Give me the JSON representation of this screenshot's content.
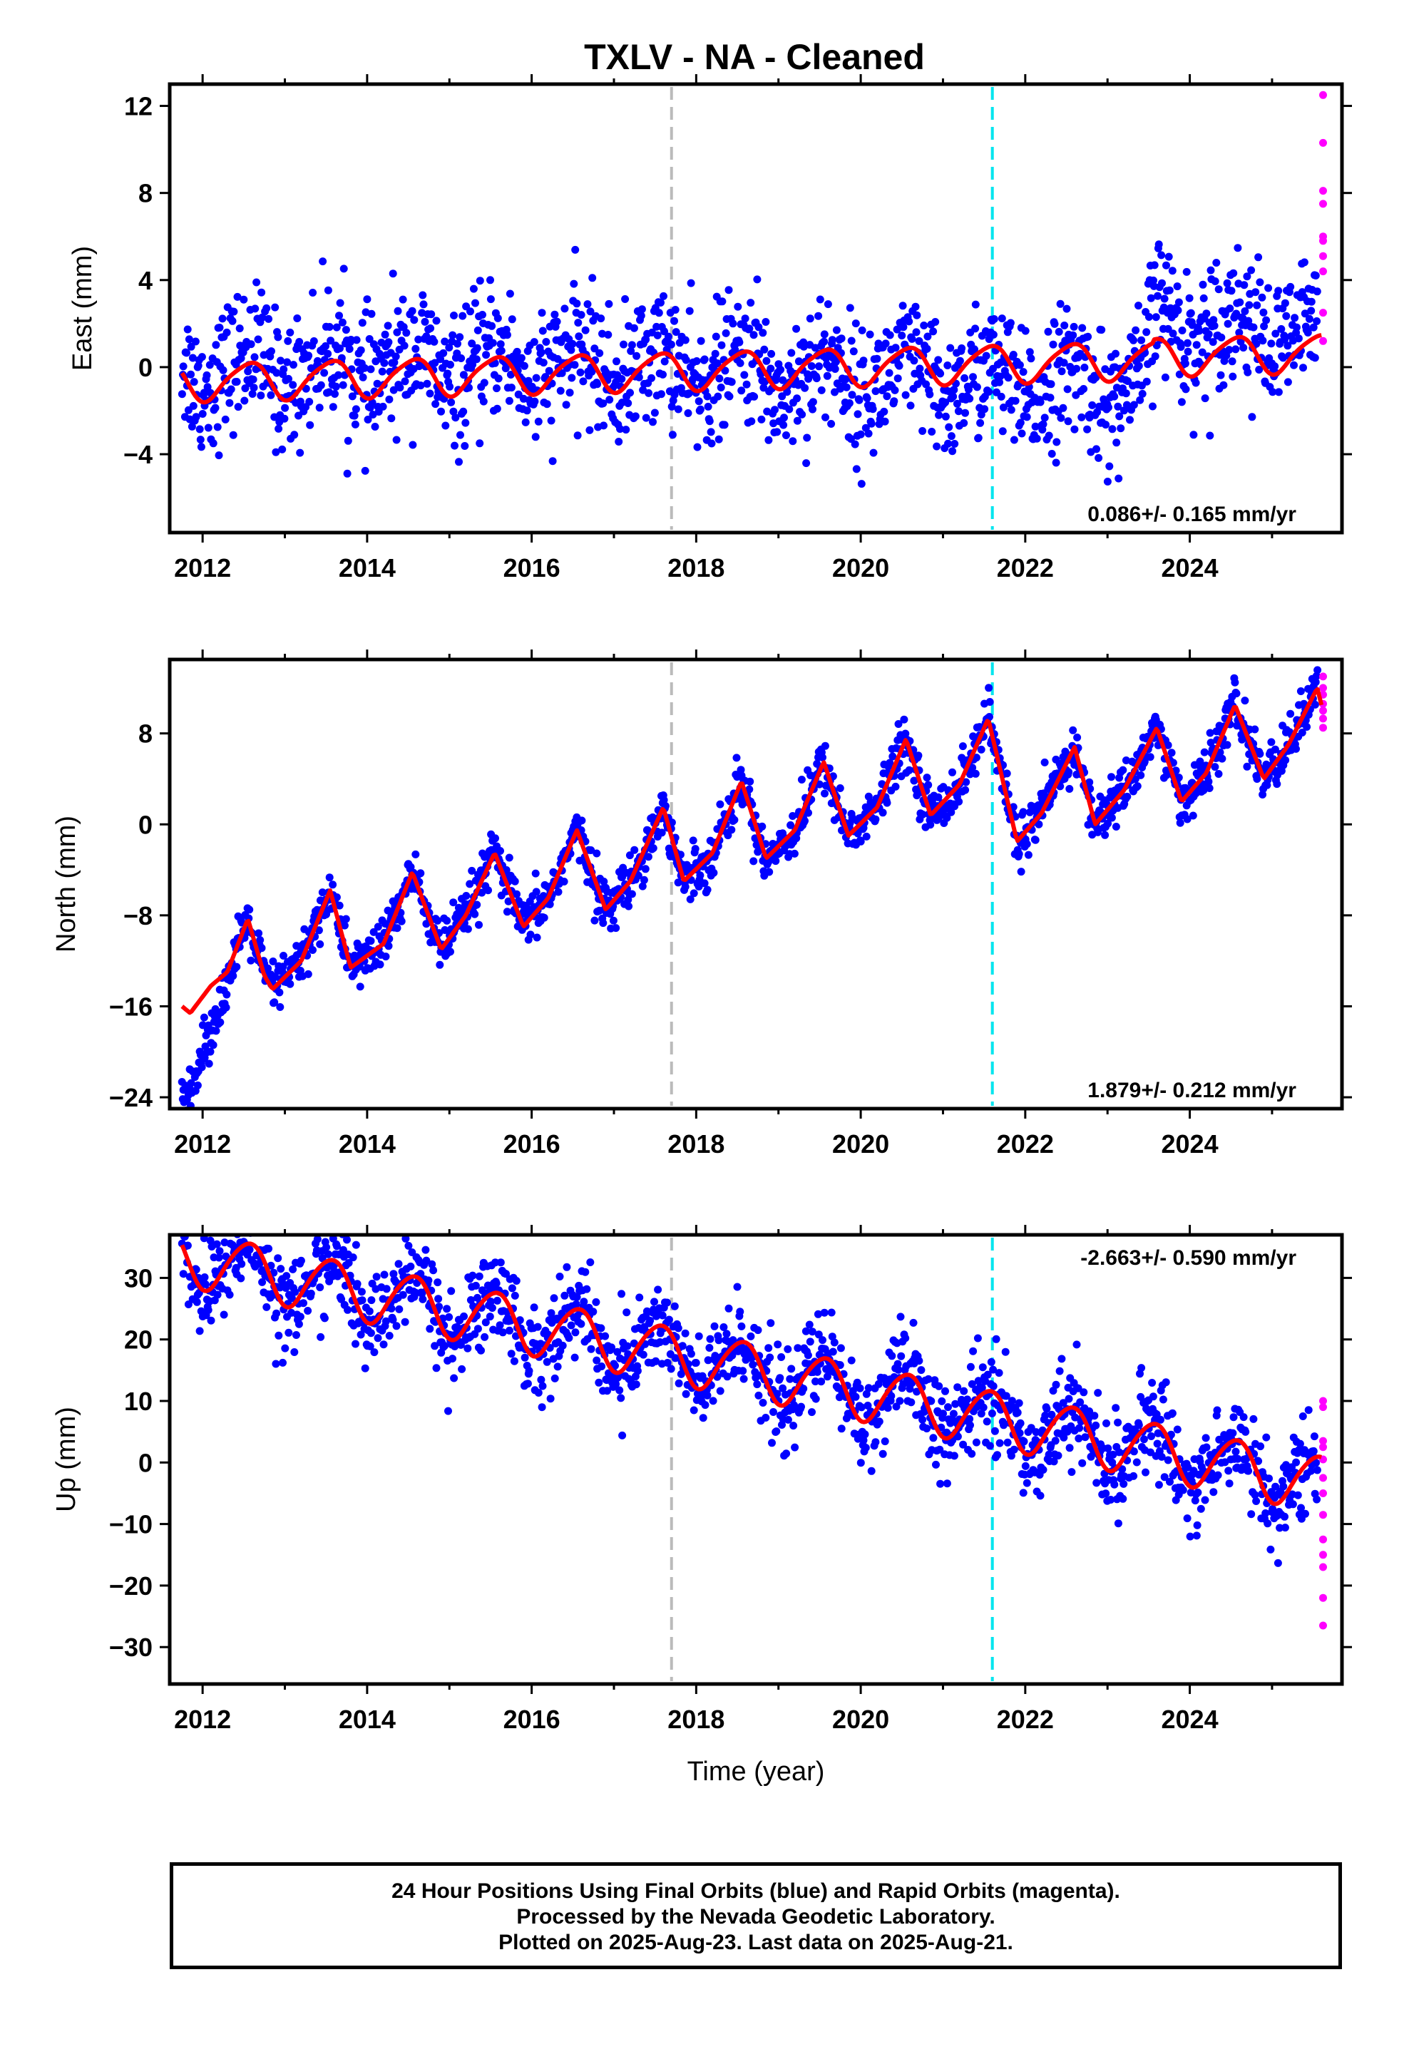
{
  "chart_title": "TXLV  - NA - Cleaned",
  "chart_data": [
    {
      "type": "scatter",
      "ylabel": "East (mm)",
      "xlabel": "",
      "xlim": [
        2011.6,
        2025.85
      ],
      "ylim": [
        -7.6,
        13.0
      ],
      "yticks": [
        -4,
        0,
        4,
        8,
        12
      ],
      "xticks": [
        2012,
        2014,
        2016,
        2018,
        2020,
        2022,
        2024
      ],
      "rate_text": "0.086+/- 0.165 mm/yr",
      "rate_position": "bottom-right",
      "equipment_change_lines": [
        {
          "x": 2017.7,
          "color": "#bbbbbb"
        },
        {
          "x": 2021.6,
          "color": "#00e5ee"
        }
      ],
      "model": {
        "rate_mm_per_yr": 0.086,
        "annual_amplitude": 0.85,
        "semiannual_amplitude": 0.15,
        "segments": [
          [
            2011.75,
            2023.55,
            -0.1
          ],
          [
            2023.55,
            2025.6,
            0.05
          ]
        ]
      },
      "point_trends": [
        [
          2011.75,
          0.6
        ],
        [
          2017.0,
          0.3
        ],
        [
          2021.5,
          -0.9
        ],
        [
          2023.4,
          -1.2
        ],
        [
          2023.6,
          1.8
        ],
        [
          2025.4,
          0.8
        ]
      ],
      "scatter_sigma": 1.5,
      "rapid_orbit_points": [
        12.5,
        10.3,
        8.1,
        7.5,
        6.0,
        5.8,
        5.1,
        4.4,
        2.5,
        1.2
      ]
    },
    {
      "type": "scatter",
      "ylabel": "North (mm)",
      "xlabel": "",
      "xlim": [
        2011.6,
        2025.85
      ],
      "ylim": [
        -25.0,
        14.5
      ],
      "yticks": [
        -24,
        -16,
        -8,
        0,
        8
      ],
      "xticks": [
        2012,
        2014,
        2016,
        2018,
        2020,
        2022,
        2024
      ],
      "rate_text": "1.879+/- 0.212 mm/yr",
      "rate_position": "bottom-right",
      "equipment_change_lines": [
        {
          "x": 2017.7,
          "color": "#bbbbbb"
        },
        {
          "x": 2021.6,
          "color": "#00e5ee"
        }
      ],
      "model_curve": [
        [
          2011.75,
          -16.0
        ],
        [
          2011.85,
          -16.6
        ],
        [
          2012.1,
          -14.2
        ],
        [
          2012.3,
          -13.0
        ],
        [
          2012.55,
          -8.3
        ],
        [
          2012.75,
          -13.3
        ],
        [
          2012.85,
          -14.5
        ],
        [
          2013.2,
          -12.0
        ],
        [
          2013.55,
          -5.8
        ],
        [
          2013.8,
          -12.6
        ],
        [
          2014.2,
          -10.5
        ],
        [
          2014.55,
          -4.2
        ],
        [
          2014.9,
          -11.0
        ],
        [
          2015.2,
          -8.0
        ],
        [
          2015.55,
          -2.5
        ],
        [
          2015.9,
          -9.0
        ],
        [
          2016.2,
          -6.5
        ],
        [
          2016.55,
          -0.5
        ],
        [
          2016.9,
          -7.5
        ],
        [
          2017.2,
          -5.0
        ],
        [
          2017.6,
          1.5
        ],
        [
          2017.85,
          -5.0
        ],
        [
          2018.2,
          -2.5
        ],
        [
          2018.55,
          3.8
        ],
        [
          2018.85,
          -3.0
        ],
        [
          2019.2,
          -0.5
        ],
        [
          2019.55,
          5.5
        ],
        [
          2019.85,
          -1.0
        ],
        [
          2020.2,
          1.5
        ],
        [
          2020.55,
          7.5
        ],
        [
          2020.85,
          0.8
        ],
        [
          2021.2,
          3.5
        ],
        [
          2021.55,
          9.3
        ],
        [
          2021.9,
          -1.5
        ],
        [
          2022.2,
          1.0
        ],
        [
          2022.6,
          6.8
        ],
        [
          2022.85,
          0.0
        ],
        [
          2023.2,
          3.0
        ],
        [
          2023.6,
          8.5
        ],
        [
          2023.9,
          2.0
        ],
        [
          2024.2,
          4.5
        ],
        [
          2024.55,
          10.5
        ],
        [
          2024.9,
          4.0
        ],
        [
          2025.2,
          7.0
        ],
        [
          2025.55,
          12.0
        ],
        [
          2025.6,
          10.5
        ]
      ],
      "point_offsets": [
        [
          2011.75,
          -6.5
        ],
        [
          2011.9,
          -6.5
        ],
        [
          2012.3,
          -1.0
        ],
        [
          2012.6,
          0.0
        ],
        [
          2025.6,
          0.0
        ]
      ],
      "scatter_sigma": 1.1,
      "rapid_orbit_points": [
        13.0,
        12.0,
        11.4,
        10.6,
        10.0,
        9.3,
        8.5
      ]
    },
    {
      "type": "scatter",
      "ylabel": "Up (mm)",
      "xlabel": "Time (year)",
      "xlim": [
        2011.6,
        2025.85
      ],
      "ylim": [
        -36.0,
        37.0
      ],
      "yticks": [
        -30,
        -20,
        -10,
        0,
        10,
        20,
        30
      ],
      "xticks": [
        2012,
        2014,
        2016,
        2018,
        2020,
        2022,
        2024
      ],
      "rate_text": "-2.663+/- 0.590 mm/yr",
      "rate_position": "top-right",
      "equipment_change_lines": [
        {
          "x": 2017.7,
          "color": "#bbbbbb"
        },
        {
          "x": 2021.6,
          "color": "#00e5ee"
        }
      ],
      "model": {
        "rate_mm_per_yr": -2.663,
        "annual_amplitude": 4.5,
        "semiannual_amplitude": 0.5,
        "segments": [
          [
            2011.75,
            2025.6,
            15.5
          ]
        ]
      },
      "scatter_sigma": 3.8,
      "rapid_orbit_points": [
        10.0,
        9.0,
        3.5,
        2.5,
        0.5,
        -2.5,
        -5.0,
        -8.5,
        -12.5,
        -15.0,
        -17.0,
        -22.0,
        -26.5
      ]
    }
  ],
  "footer": {
    "line1": "24 Hour Positions Using Final Orbits (blue) and Rapid Orbits (magenta).",
    "line2": "Processed by the Nevada Geodetic Laboratory.",
    "line3": "Plotted on 2025-Aug-23. Last data on 2025-Aug-21."
  },
  "colors": {
    "final_orbits": "#0000ff",
    "rapid_orbits": "#ff00ff",
    "model": "#ff0000",
    "antenna_change": "#bbbbbb",
    "receiver_change": "#00e5ee"
  }
}
